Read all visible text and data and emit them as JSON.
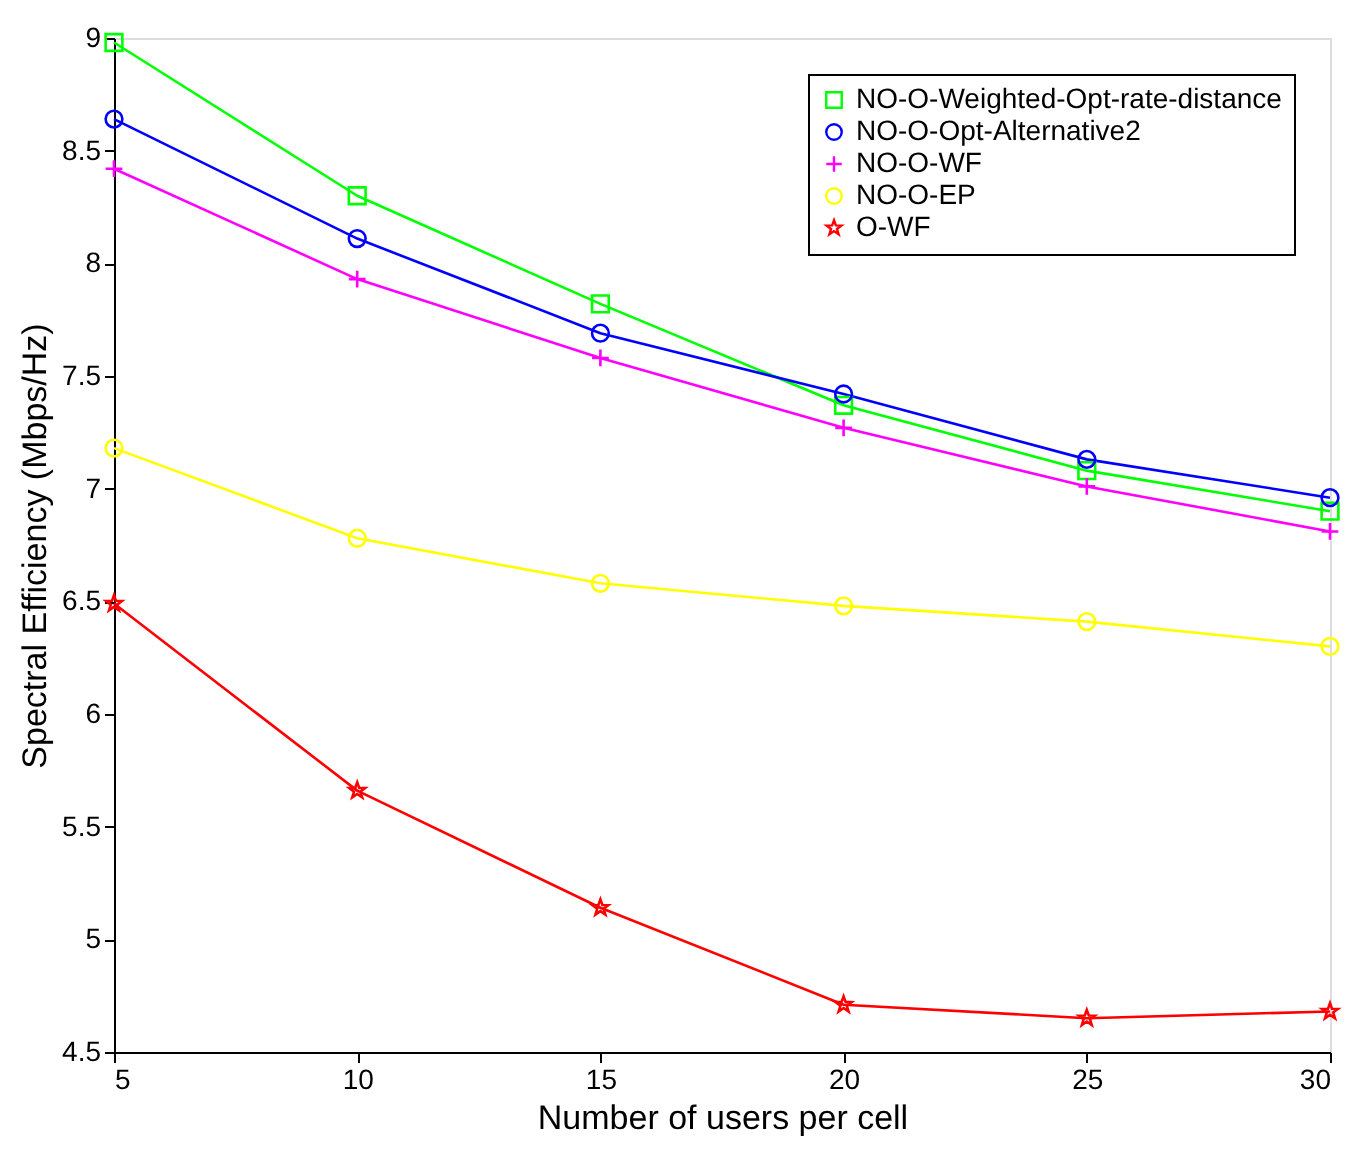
{
  "chart_data": {
    "type": "line",
    "xlabel": "Number of users per cell",
    "ylabel": "Spectral Efficiency (Mbps/Hz)",
    "x": [
      5,
      10,
      15,
      20,
      25,
      30
    ],
    "xlim": [
      5,
      30
    ],
    "xticks": [
      5,
      10,
      15,
      20,
      25,
      30
    ],
    "ylim": [
      4.5,
      9
    ],
    "yticks": [
      4.5,
      5,
      5.5,
      6,
      6.5,
      7,
      7.5,
      8,
      8.5,
      9
    ],
    "grid": false,
    "legend": "top right",
    "line_style": "solid",
    "series": [
      {
        "name": "NO-O-Weighted-Opt-rate-distance",
        "color": "#00ff00",
        "marker": "square",
        "values": [
          8.98,
          8.3,
          7.82,
          7.37,
          7.08,
          6.9
        ]
      },
      {
        "name": "NO-O-Opt-Alternative2",
        "color": "#0000ff",
        "marker": "circle",
        "values": [
          8.64,
          8.11,
          7.69,
          7.42,
          7.13,
          6.96
        ]
      },
      {
        "name": "NO-O-WF",
        "color": "#ff00ff",
        "marker": "cross",
        "values": [
          8.42,
          7.93,
          7.58,
          7.27,
          7.01,
          6.81
        ]
      },
      {
        "name": "NO-O-EP",
        "color": "#ffff00",
        "marker": "circle",
        "values": [
          7.18,
          6.78,
          6.58,
          6.48,
          6.41,
          6.3
        ]
      },
      {
        "name": "O-WF",
        "color": "#ff0000",
        "marker": "star",
        "values": [
          6.49,
          5.66,
          5.14,
          4.71,
          4.65,
          4.68
        ]
      }
    ]
  }
}
